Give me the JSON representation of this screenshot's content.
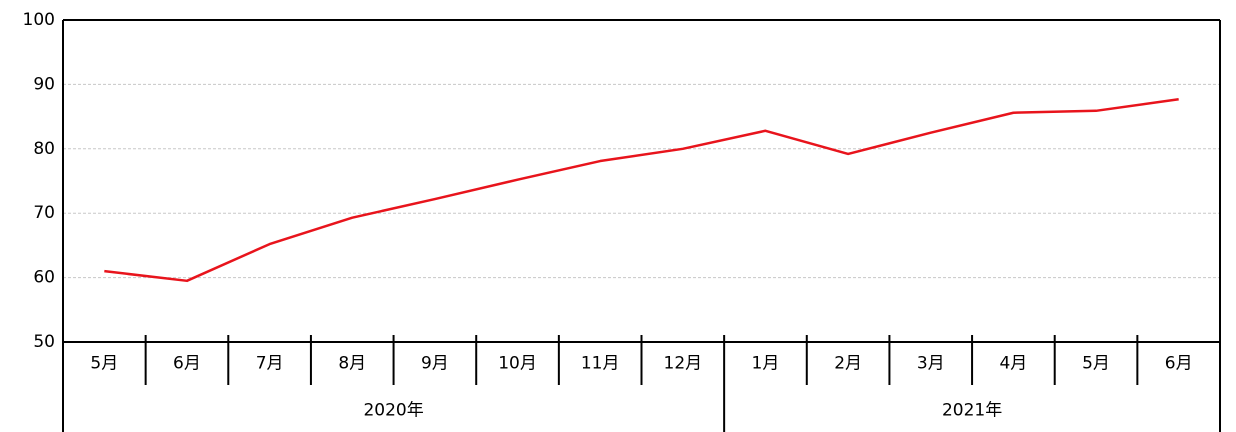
{
  "chart_data": {
    "type": "line",
    "groups": [
      {
        "label": "2020年",
        "categories": [
          "5月",
          "6月",
          "7月",
          "8月",
          "9月",
          "10月",
          "11月",
          "12月"
        ]
      },
      {
        "label": "2021年",
        "categories": [
          "1月",
          "2月",
          "3月",
          "4月",
          "5月",
          "6月"
        ]
      }
    ],
    "series": [
      {
        "color": "#e8141c",
        "values": [
          61.0,
          59.5,
          65.2,
          69.3,
          72.2,
          75.2,
          78.1,
          80.0,
          82.8,
          79.2,
          82.5,
          85.6,
          85.9,
          87.7
        ]
      }
    ],
    "ylim": [
      50,
      100
    ],
    "yticks": [
      50,
      60,
      70,
      80,
      90,
      100
    ],
    "grid": true
  }
}
